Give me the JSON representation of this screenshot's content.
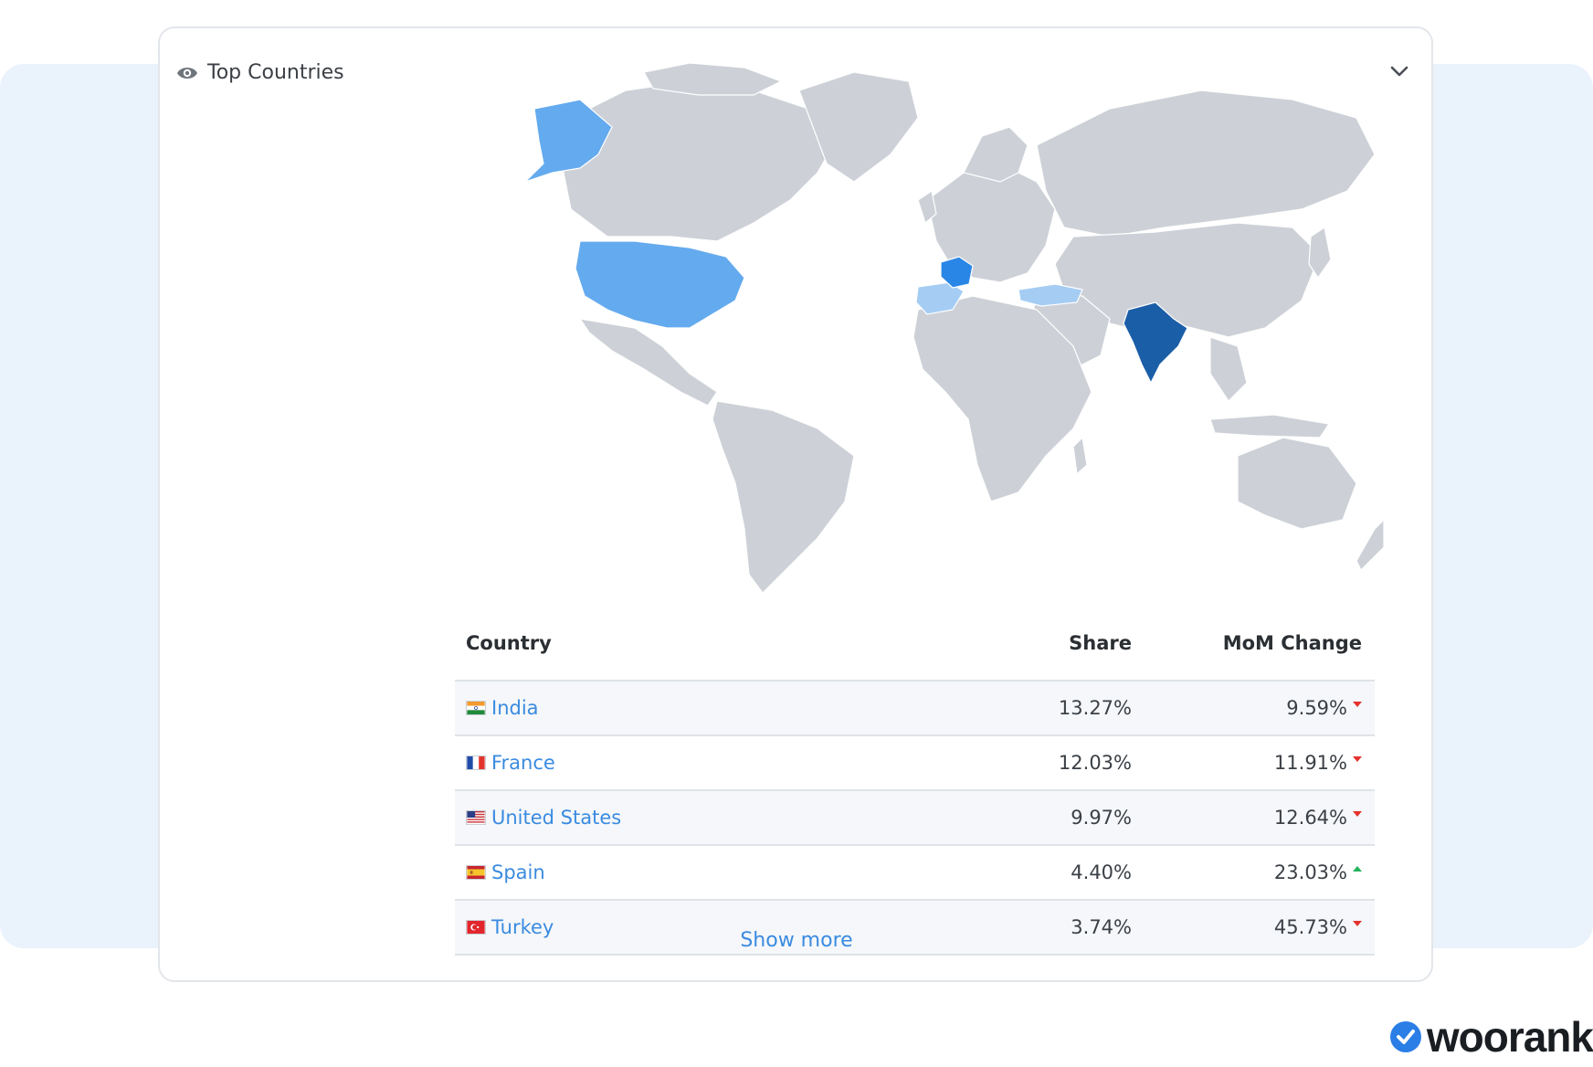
{
  "card": {
    "title": "Top Countries",
    "icons": {
      "header": "eye-icon",
      "toggle": "chevron-down-icon"
    }
  },
  "map": {
    "land_color": "#cdd1d7",
    "highlights": [
      {
        "country": "India",
        "color": "#1b5ea8"
      },
      {
        "country": "France",
        "color": "#2a86e6"
      },
      {
        "country": "United States",
        "color": "#64aaee"
      },
      {
        "country": "Spain",
        "color": "#a5cdf4"
      },
      {
        "country": "Turkey",
        "color": "#a5cdf4"
      }
    ]
  },
  "table": {
    "headers": {
      "country": "Country",
      "share": "Share",
      "mom": "MoM Change"
    },
    "rows": [
      {
        "country": "India",
        "share": "13.27%",
        "mom": "9.59%",
        "trend": "down"
      },
      {
        "country": "France",
        "share": "12.03%",
        "mom": "11.91%",
        "trend": "down"
      },
      {
        "country": "United States",
        "share": "9.97%",
        "mom": "12.64%",
        "trend": "down"
      },
      {
        "country": "Spain",
        "share": "4.40%",
        "mom": "23.03%",
        "trend": "up"
      },
      {
        "country": "Turkey",
        "share": "3.74%",
        "mom": "45.73%",
        "trend": "down"
      }
    ]
  },
  "show_more": "Show more",
  "brand": {
    "name": "woorank",
    "icon": "check-badge-icon"
  }
}
